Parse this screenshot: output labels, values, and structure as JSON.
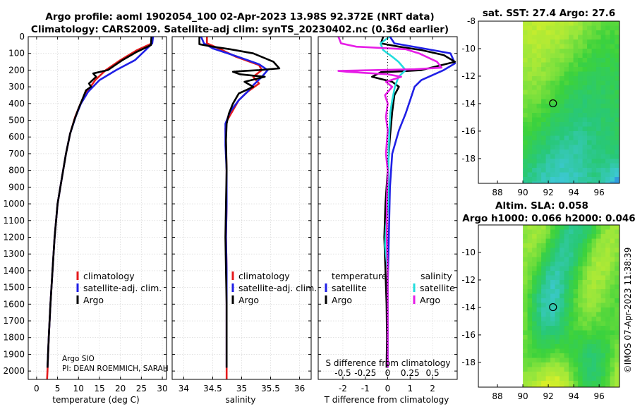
{
  "title_line1": "Argo profile: aoml 1902054_100 02-Apr-2023 13.98S 92.372E (NRT data)",
  "title_line2": "Climatology: CARS2009. Satellite-adj clim: synTS_20230402.nc (0.36d earlier)",
  "colors": {
    "climatology": "#e41a1c",
    "satellite": "#1f1fe6",
    "argo": "#000000",
    "sat_salinity": "#22dddd",
    "argo_salinity": "#e61ee6"
  },
  "depth_axis": {
    "ticks": [
      0,
      100,
      200,
      300,
      400,
      500,
      600,
      700,
      800,
      900,
      1000,
      1100,
      1200,
      1300,
      1400,
      1500,
      1600,
      1700,
      1800,
      1900,
      2000
    ],
    "range": [
      0,
      2050
    ]
  },
  "chart_data": [
    {
      "type": "line",
      "name": "temperature-profile",
      "xlabel": "temperature (deg C)",
      "ylabel": "depth (dbar)",
      "xlim": [
        -2,
        31
      ],
      "xticks": [
        0,
        5,
        10,
        15,
        20,
        25,
        30
      ],
      "legend": [
        "climatology",
        "satellite-adj. clim.",
        "Argo"
      ],
      "legend_location": "lower-right",
      "annotation_lines": [
        "Argo SIO",
        "PI: DEAN ROEMMICH, SARAH"
      ],
      "series": [
        {
          "name": "climatology",
          "points": [
            [
              27.6,
              0
            ],
            [
              27.5,
              40
            ],
            [
              24,
              80
            ],
            [
              20,
              140
            ],
            [
              16.5,
              200
            ],
            [
              14,
              260
            ],
            [
              12,
              330
            ],
            [
              10.5,
              400
            ],
            [
              9.2,
              480
            ],
            [
              8,
              580
            ],
            [
              7,
              700
            ],
            [
              6,
              850
            ],
            [
              5,
              1000
            ],
            [
              4.3,
              1200
            ],
            [
              3.8,
              1400
            ],
            [
              3.3,
              1600
            ],
            [
              2.9,
              1800
            ],
            [
              2.6,
              2000
            ],
            [
              2.5,
              2050
            ]
          ]
        },
        {
          "name": "satellite-adj. clim.",
          "points": [
            [
              27.8,
              0
            ],
            [
              27.6,
              40
            ],
            [
              26,
              80
            ],
            [
              23.5,
              140
            ],
            [
              19,
              200
            ],
            [
              15,
              260
            ],
            [
              12.3,
              330
            ],
            [
              10.6,
              400
            ],
            [
              9.3,
              480
            ],
            [
              8,
              580
            ],
            [
              7,
              700
            ],
            [
              6,
              850
            ],
            [
              5,
              1000
            ],
            [
              4.3,
              1200
            ],
            [
              3.8,
              1400
            ],
            [
              3.3,
              1600
            ],
            [
              2.9,
              1800
            ],
            [
              2.6,
              1980
            ]
          ]
        },
        {
          "name": "Argo",
          "points": [
            [
              27.4,
              0
            ],
            [
              27.3,
              50
            ],
            [
              24,
              90
            ],
            [
              20.5,
              140
            ],
            [
              17,
              200
            ],
            [
              13.5,
              220
            ],
            [
              14.2,
              240
            ],
            [
              12.5,
              280
            ],
            [
              13,
              300
            ],
            [
              11.8,
              320
            ],
            [
              11,
              370
            ],
            [
              10,
              430
            ],
            [
              9,
              500
            ],
            [
              8,
              580
            ],
            [
              7,
              700
            ],
            [
              6,
              850
            ],
            [
              5,
              1000
            ],
            [
              4.3,
              1200
            ],
            [
              3.8,
              1400
            ],
            [
              3.3,
              1600
            ],
            [
              2.9,
              1800
            ],
            [
              2.6,
              1980
            ]
          ]
        }
      ]
    },
    {
      "type": "line",
      "name": "salinity-profile",
      "xlabel": "salinity",
      "ylabel": "",
      "xlim": [
        33.8,
        36.2
      ],
      "xticks": [
        34,
        34.5,
        35,
        35.5,
        36
      ],
      "legend": [
        "climatology",
        "satellite-adj. clim.",
        "Argo"
      ],
      "legend_location": "lower-right",
      "series": [
        {
          "name": "climatology",
          "points": [
            [
              34.4,
              0
            ],
            [
              34.4,
              40
            ],
            [
              34.6,
              70
            ],
            [
              34.9,
              120
            ],
            [
              35.3,
              170
            ],
            [
              35.35,
              200
            ],
            [
              35.2,
              240
            ],
            [
              35.3,
              280
            ],
            [
              35.1,
              330
            ],
            [
              34.95,
              380
            ],
            [
              34.85,
              440
            ],
            [
              34.75,
              500
            ],
            [
              34.72,
              550
            ],
            [
              34.73,
              650
            ],
            [
              34.74,
              800
            ],
            [
              34.74,
              1000
            ],
            [
              34.73,
              1200
            ],
            [
              34.74,
              1400
            ],
            [
              34.74,
              1600
            ],
            [
              34.74,
              1800
            ],
            [
              34.74,
              2000
            ],
            [
              34.74,
              2050
            ]
          ]
        },
        {
          "name": "satellite-adj. clim.",
          "points": [
            [
              34.3,
              0
            ],
            [
              34.35,
              40
            ],
            [
              34.5,
              70
            ],
            [
              34.85,
              110
            ],
            [
              35.1,
              140
            ],
            [
              35.3,
              165
            ],
            [
              35.45,
              200
            ],
            [
              35.35,
              240
            ],
            [
              35.2,
              290
            ],
            [
              35.1,
              330
            ],
            [
              34.95,
              380
            ],
            [
              34.8,
              450
            ],
            [
              34.72,
              520
            ],
            [
              34.72,
              650
            ],
            [
              34.74,
              800
            ],
            [
              34.74,
              1000
            ],
            [
              34.73,
              1200
            ],
            [
              34.74,
              1400
            ],
            [
              34.74,
              1600
            ],
            [
              34.74,
              1800
            ],
            [
              34.74,
              1980
            ]
          ]
        },
        {
          "name": "Argo",
          "points": [
            [
              34.27,
              0
            ],
            [
              34.27,
              45
            ],
            [
              34.5,
              60
            ],
            [
              34.8,
              75
            ],
            [
              35.2,
              100
            ],
            [
              35.55,
              150
            ],
            [
              35.65,
              190
            ],
            [
              35.3,
              200
            ],
            [
              35.05,
              205
            ],
            [
              34.85,
              210
            ],
            [
              34.97,
              225
            ],
            [
              35.4,
              240
            ],
            [
              35.05,
              270
            ],
            [
              35.2,
              300
            ],
            [
              34.95,
              340
            ],
            [
              34.85,
              400
            ],
            [
              34.78,
              460
            ],
            [
              34.74,
              520
            ],
            [
              34.73,
              620
            ],
            [
              34.74,
              800
            ],
            [
              34.73,
              1000
            ],
            [
              34.72,
              1200
            ],
            [
              34.73,
              1400
            ],
            [
              34.74,
              1600
            ],
            [
              34.74,
              1800
            ],
            [
              34.74,
              1980
            ]
          ]
        }
      ]
    },
    {
      "type": "line",
      "name": "difference-profile",
      "xlabel": "T difference from climatology",
      "xlabel_top": "S difference from climatology",
      "xlim": [
        -3.1,
        3.1
      ],
      "xticks": [
        -2,
        -1,
        0,
        1,
        2
      ],
      "xticks_salinity": [
        "-0.5",
        "-0.25",
        "0",
        "0.25",
        "0.5"
      ],
      "legend_groups": {
        "temperature": [
          "satellite",
          "Argo"
        ],
        "salinity": [
          "satellite",
          "Argo"
        ]
      },
      "legend_location": "lower",
      "series": [
        {
          "name": "T satellite",
          "quantity": "temperature",
          "points": [
            [
              0.1,
              0
            ],
            [
              0.3,
              40
            ],
            [
              2,
              80
            ],
            [
              2.8,
              100
            ],
            [
              3,
              160
            ],
            [
              2.5,
              200
            ],
            [
              1.5,
              260
            ],
            [
              1.2,
              300
            ],
            [
              1,
              380
            ],
            [
              0.8,
              460
            ],
            [
              0.5,
              560
            ],
            [
              0.2,
              700
            ],
            [
              0.1,
              900
            ],
            [
              0.05,
              1200
            ],
            [
              0,
              1500
            ],
            [
              0,
              1800
            ],
            [
              0,
              1980
            ]
          ]
        },
        {
          "name": "T Argo",
          "quantity": "temperature",
          "points": [
            [
              -0.2,
              0
            ],
            [
              -0.3,
              40
            ],
            [
              0.5,
              60
            ],
            [
              1.5,
              80
            ],
            [
              2.5,
              110
            ],
            [
              3,
              150
            ],
            [
              1.5,
              200
            ],
            [
              0.5,
              208
            ],
            [
              -0.3,
              212
            ],
            [
              -0.7,
              240
            ],
            [
              0.2,
              270
            ],
            [
              0.5,
              300
            ],
            [
              0.3,
              350
            ],
            [
              0.2,
              450
            ],
            [
              0.1,
              600
            ],
            [
              0,
              800
            ],
            [
              -0.1,
              1000
            ],
            [
              -0.15,
              1200
            ],
            [
              -0.1,
              1400
            ],
            [
              -0.05,
              1600
            ],
            [
              -0.03,
              1800
            ],
            [
              -0.05,
              1980
            ]
          ]
        },
        {
          "name": "S satellite",
          "quantity": "salinity",
          "points": [
            [
              0.02,
              0
            ],
            [
              -0.08,
              40
            ],
            [
              -0.05,
              80
            ],
            [
              0.05,
              120
            ],
            [
              0.12,
              150
            ],
            [
              0.2,
              200
            ],
            [
              0.12,
              240
            ],
            [
              0.08,
              300
            ],
            [
              0.05,
              380
            ],
            [
              0.03,
              450
            ],
            [
              0.02,
              550
            ],
            [
              0.01,
              700
            ],
            [
              0.005,
              1000
            ],
            [
              -0.02,
              1150
            ],
            [
              -0.03,
              1250
            ],
            [
              0,
              1400
            ],
            [
              0,
              1600
            ],
            [
              0,
              1800
            ],
            [
              0,
              1980
            ]
          ]
        },
        {
          "name": "S Argo",
          "quantity": "salinity",
          "points": [
            [
              -0.55,
              0
            ],
            [
              -0.52,
              40
            ],
            [
              -0.35,
              60
            ],
            [
              0.2,
              75
            ],
            [
              0.35,
              100
            ],
            [
              0.55,
              150
            ],
            [
              0.6,
              185
            ],
            [
              0.3,
              195
            ],
            [
              -0.55,
              205
            ],
            [
              -0.45,
              210
            ],
            [
              0,
              225
            ],
            [
              0.15,
              240
            ],
            [
              -0.02,
              270
            ],
            [
              0.05,
              300
            ],
            [
              -0.03,
              350
            ],
            [
              0,
              400
            ],
            [
              -0.02,
              480
            ],
            [
              0,
              560
            ],
            [
              -0.02,
              700
            ],
            [
              0,
              800
            ],
            [
              -0.01,
              1000
            ],
            [
              -0.01,
              1200
            ],
            [
              0,
              1400
            ],
            [
              0,
              1600
            ],
            [
              0,
              1800
            ],
            [
              0,
              1980
            ]
          ]
        }
      ]
    },
    {
      "type": "heatmap",
      "name": "sst-map",
      "title": "sat. SST: 27.4 Argo: 27.6",
      "xlim": [
        86.5,
        97.6
      ],
      "ylim": [
        -19.8,
        -8
      ],
      "xticks": [
        88,
        90,
        92,
        94,
        96
      ],
      "yticks": [
        -8,
        -10,
        -12,
        -14,
        -16,
        -18
      ],
      "data_xrange": [
        90,
        97.6
      ],
      "profile_position": [
        92.37,
        -13.98
      ]
    },
    {
      "type": "heatmap",
      "name": "sla-map",
      "title_line1": "Altim. SLA: 0.058",
      "title_line2": "Argo h1000: 0.066 h2000: 0.046",
      "xlim": [
        86.5,
        97.6
      ],
      "ylim": [
        -19.8,
        -8
      ],
      "xticks": [
        88,
        90,
        92,
        94,
        96
      ],
      "yticks": [
        -10,
        -12,
        -14,
        -16,
        -18
      ],
      "data_xrange": [
        90,
        97.6
      ],
      "profile_position": [
        92.37,
        -13.98
      ]
    }
  ],
  "credit": "©IMOS 07-Apr-2023 11:38:39"
}
